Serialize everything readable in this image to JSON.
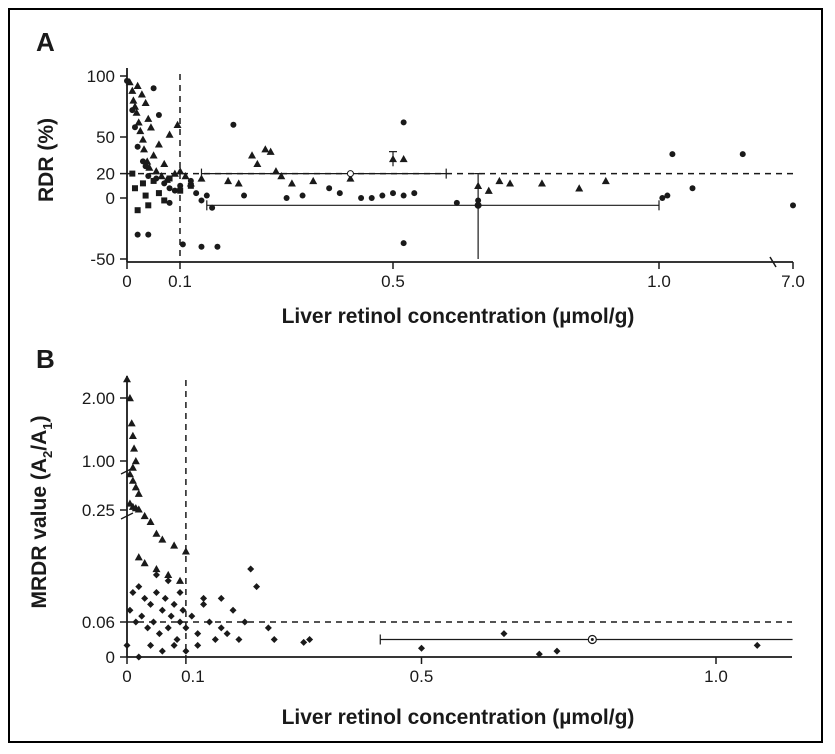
{
  "figure": {
    "border_color": "#000000",
    "mark_color": "#1a1a1a"
  },
  "chart_data": [
    {
      "panel": "A",
      "type": "scatter",
      "xlabel": "Liver retinol concentration (µmol/g)",
      "ylabel": "RDR (%)",
      "x_ticks": [
        "0",
        "0.1",
        "0.5",
        "1.0",
        "7.0"
      ],
      "y_ticks": [
        "100",
        "50",
        "20",
        "0",
        "-50"
      ],
      "ylim": [
        -50,
        100
      ],
      "x_scale": "broken",
      "reference_lines": {
        "x_cutoff": 0.1,
        "y_cutoff": 20
      },
      "triangles": [
        [
          0.005,
          95
        ],
        [
          0.01,
          88
        ],
        [
          0.012,
          80
        ],
        [
          0.015,
          75
        ],
        [
          0.018,
          70
        ],
        [
          0.02,
          92
        ],
        [
          0.022,
          62
        ],
        [
          0.025,
          55
        ],
        [
          0.028,
          85
        ],
        [
          0.03,
          48
        ],
        [
          0.032,
          40
        ],
        [
          0.035,
          78
        ],
        [
          0.038,
          30
        ],
        [
          0.04,
          65
        ],
        [
          0.042,
          25
        ],
        [
          0.045,
          58
        ],
        [
          0.05,
          35
        ],
        [
          0.055,
          22
        ],
        [
          0.06,
          44
        ],
        [
          0.065,
          18
        ],
        [
          0.07,
          28
        ],
        [
          0.075,
          15
        ],
        [
          0.08,
          52
        ],
        [
          0.09,
          20
        ],
        [
          0.095,
          60
        ],
        [
          0.1,
          22
        ],
        [
          0.11,
          18
        ],
        [
          0.12,
          12
        ],
        [
          0.14,
          16
        ],
        [
          0.19,
          14
        ],
        [
          0.21,
          12
        ],
        [
          0.235,
          35
        ],
        [
          0.245,
          28
        ],
        [
          0.26,
          40
        ],
        [
          0.27,
          38
        ],
        [
          0.28,
          22
        ],
        [
          0.29,
          18
        ],
        [
          0.31,
          12
        ],
        [
          0.35,
          14
        ],
        [
          0.42,
          16
        ],
        [
          0.52,
          32
        ],
        [
          0.66,
          10
        ],
        [
          0.68,
          6
        ],
        [
          0.7,
          14
        ],
        [
          0.72,
          12
        ],
        [
          0.78,
          12
        ],
        [
          0.85,
          8
        ],
        [
          0.9,
          14
        ]
      ],
      "circles": [
        [
          0.0,
          96
        ],
        [
          0.01,
          72
        ],
        [
          0.015,
          58
        ],
        [
          0.02,
          42
        ],
        [
          0.03,
          30
        ],
        [
          0.035,
          26
        ],
        [
          0.04,
          18
        ],
        [
          0.05,
          90
        ],
        [
          0.055,
          16
        ],
        [
          0.06,
          68
        ],
        [
          0.07,
          12
        ],
        [
          0.08,
          8
        ],
        [
          0.09,
          6
        ],
        [
          0.1,
          10
        ],
        [
          0.12,
          14
        ],
        [
          0.13,
          4
        ],
        [
          0.14,
          -2
        ],
        [
          0.16,
          -8
        ],
        [
          0.17,
          -40
        ],
        [
          0.2,
          60
        ],
        [
          0.22,
          2
        ],
        [
          0.3,
          0
        ],
        [
          0.33,
          2
        ],
        [
          0.38,
          8
        ],
        [
          0.4,
          4
        ],
        [
          0.44,
          0
        ],
        [
          0.46,
          0
        ],
        [
          0.48,
          2
        ],
        [
          0.5,
          4
        ],
        [
          0.52,
          2
        ],
        [
          0.52,
          62
        ],
        [
          0.52,
          -37
        ],
        [
          0.54,
          4
        ],
        [
          0.62,
          -4
        ],
        [
          0.66,
          -2
        ],
        [
          1.02,
          0
        ],
        [
          1.05,
          2
        ],
        [
          1.08,
          36
        ],
        [
          1.2,
          8
        ],
        [
          1.5,
          36
        ],
        [
          1.8,
          -6
        ],
        [
          0.02,
          -30
        ],
        [
          0.04,
          -30
        ],
        [
          0.08,
          -4
        ],
        [
          0.105,
          -38
        ],
        [
          0.15,
          2
        ],
        [
          0.14,
          -40
        ]
      ],
      "squares": [
        [
          0.01,
          20
        ],
        [
          0.015,
          8
        ],
        [
          0.02,
          -10
        ],
        [
          0.03,
          12
        ],
        [
          0.035,
          2
        ],
        [
          0.04,
          -6
        ],
        [
          0.05,
          14
        ],
        [
          0.06,
          4
        ],
        [
          0.07,
          -2
        ],
        [
          0.08,
          16
        ],
        [
          0.1,
          6
        ],
        [
          0.12,
          10
        ]
      ],
      "error_bar_markers": [
        {
          "x": 0.5,
          "y": 32,
          "low": 26,
          "high": 38
        },
        {
          "x": 0.42,
          "y": 20,
          "low": 20,
          "high": 20,
          "xlow": 0.14,
          "xhigh": 0.6
        },
        {
          "x": 0.66,
          "y": -6,
          "low": -50,
          "high": 20,
          "xlow": 0.15,
          "xhigh": 1.0
        }
      ]
    },
    {
      "panel": "B",
      "type": "scatter",
      "xlabel": "Liver retinol concentration (µmol/g)",
      "ylabel": "MRDR value (A2/A1)",
      "ylabel_main": "MRDR value (A",
      "ylabel_sub1": "2",
      "ylabel_mid": "/A",
      "ylabel_sub2": "1",
      "ylabel_end": ")",
      "x_ticks": [
        "0",
        "0.1",
        "0.5",
        "1.0"
      ],
      "y_ticks": [
        "2.00",
        "1.00",
        "0.25",
        "0.06",
        "0"
      ],
      "y_scale": "broken",
      "reference_lines": {
        "x_cutoff": 0.1,
        "y_cutoff": 0.06
      },
      "triangles": [
        [
          0.0,
          2.3
        ],
        [
          0.005,
          2.0
        ],
        [
          0.008,
          1.6
        ],
        [
          0.01,
          1.4
        ],
        [
          0.012,
          1.2
        ],
        [
          0.015,
          1.0
        ],
        [
          0.01,
          0.9
        ],
        [
          0.005,
          0.8
        ],
        [
          0.01,
          0.7
        ],
        [
          0.015,
          0.6
        ],
        [
          0.02,
          0.5
        ],
        [
          0.005,
          0.35
        ],
        [
          0.01,
          0.3
        ],
        [
          0.015,
          0.28
        ],
        [
          0.02,
          0.26
        ],
        [
          0.03,
          0.24
        ],
        [
          0.04,
          0.23
        ],
        [
          0.05,
          0.21
        ],
        [
          0.06,
          0.2
        ],
        [
          0.08,
          0.19
        ],
        [
          0.1,
          0.18
        ],
        [
          0.02,
          0.17
        ],
        [
          0.03,
          0.16
        ],
        [
          0.05,
          0.15
        ],
        [
          0.07,
          0.14
        ],
        [
          0.09,
          0.13
        ]
      ],
      "diamonds": [
        [
          0.005,
          0.08
        ],
        [
          0.01,
          0.11
        ],
        [
          0.015,
          0.06
        ],
        [
          0.02,
          0.12
        ],
        [
          0.025,
          0.07
        ],
        [
          0.03,
          0.1
        ],
        [
          0.035,
          0.05
        ],
        [
          0.04,
          0.09
        ],
        [
          0.045,
          0.06
        ],
        [
          0.05,
          0.11
        ],
        [
          0.055,
          0.04
        ],
        [
          0.06,
          0.08
        ],
        [
          0.065,
          0.1
        ],
        [
          0.07,
          0.05
        ],
        [
          0.075,
          0.07
        ],
        [
          0.08,
          0.09
        ],
        [
          0.085,
          0.03
        ],
        [
          0.09,
          0.06
        ],
        [
          0.095,
          0.08
        ],
        [
          0.1,
          0.05
        ],
        [
          0.11,
          0.07
        ],
        [
          0.12,
          0.04
        ],
        [
          0.13,
          0.09
        ],
        [
          0.14,
          0.06
        ],
        [
          0.15,
          0.03
        ],
        [
          0.16,
          0.05
        ],
        [
          0.17,
          0.04
        ],
        [
          0.18,
          0.08
        ],
        [
          0.19,
          0.03
        ],
        [
          0.2,
          0.06
        ],
        [
          0.22,
          0.12
        ],
        [
          0.24,
          0.05
        ],
        [
          0.25,
          0.03
        ],
        [
          0.3,
          0.025
        ],
        [
          0.31,
          0.03
        ],
        [
          0.5,
          0.015
        ],
        [
          0.64,
          0.04
        ],
        [
          0.7,
          0.005
        ],
        [
          0.73,
          0.01
        ],
        [
          1.07,
          0.02
        ],
        [
          0.0,
          0.02
        ],
        [
          0.02,
          0.0
        ],
        [
          0.04,
          0.02
        ],
        [
          0.06,
          0.01
        ],
        [
          0.08,
          0.02
        ],
        [
          0.1,
          0.01
        ],
        [
          0.12,
          0.02
        ],
        [
          0.05,
          0.14
        ],
        [
          0.07,
          0.13
        ],
        [
          0.09,
          0.11
        ],
        [
          0.13,
          0.1
        ],
        [
          0.16,
          0.1
        ],
        [
          0.21,
          0.15
        ]
      ],
      "error_bar_markers": [
        {
          "x": 0.79,
          "y": 0.03,
          "xlow": 0.43,
          "xhigh": 1.13
        }
      ]
    }
  ]
}
